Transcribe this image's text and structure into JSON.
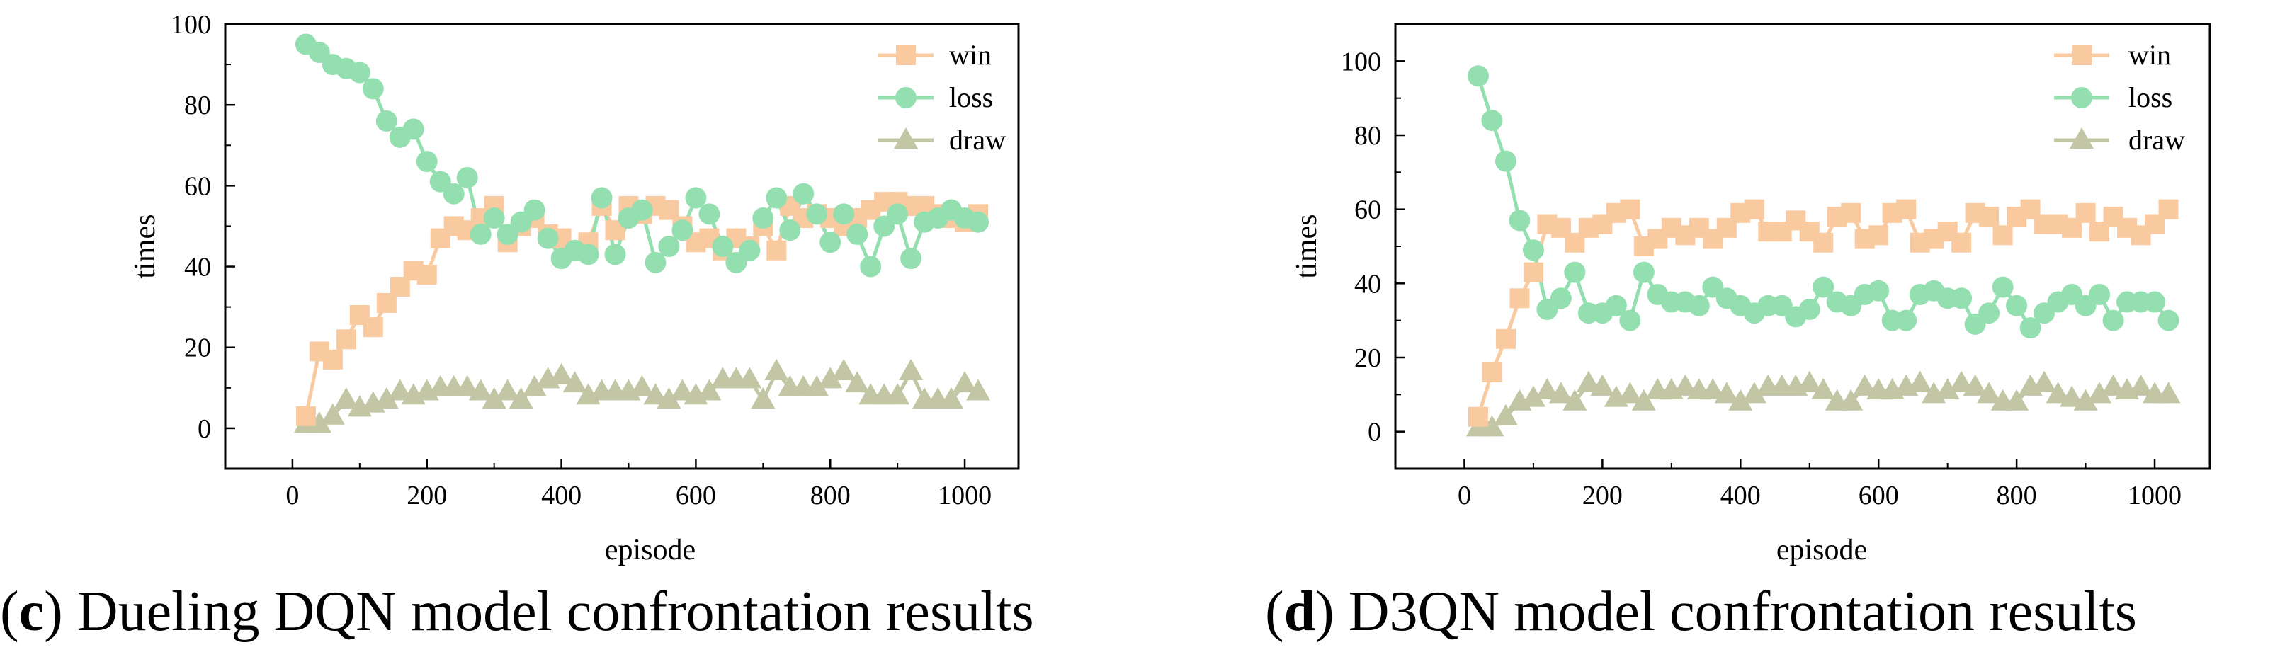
{
  "panels": [
    {
      "caption": {
        "open": "(",
        "letter": "c",
        "close": ")",
        "text": "Dueling DQN model confrontation results"
      },
      "chart_data": {
        "type": "line",
        "xlabel": "episode",
        "ylabel": "times",
        "xlim": [
          -100,
          1080
        ],
        "ylim": [
          -10,
          100
        ],
        "xticks": [
          0,
          200,
          400,
          600,
          800,
          1000
        ],
        "yticks": [
          0,
          20,
          40,
          60,
          80,
          100
        ],
        "legend": "top-right",
        "x": [
          20,
          40,
          60,
          80,
          100,
          120,
          140,
          160,
          180,
          200,
          220,
          240,
          260,
          280,
          300,
          320,
          340,
          360,
          380,
          400,
          420,
          440,
          460,
          480,
          500,
          520,
          540,
          560,
          580,
          600,
          620,
          640,
          660,
          680,
          700,
          720,
          740,
          760,
          780,
          800,
          820,
          840,
          860,
          880,
          900,
          920,
          940,
          960,
          980,
          1000,
          1020
        ],
        "series": [
          {
            "name": "win",
            "marker": "square",
            "color": "#f9c9a0",
            "values": [
              3,
              19,
              17,
              22,
              28,
              25,
              31,
              35,
              39,
              38,
              47,
              50,
              49,
              52,
              55,
              46,
              50,
              52,
              48,
              47,
              44,
              46,
              55,
              49,
              55,
              53,
              55,
              54,
              50,
              46,
              47,
              44,
              47,
              45,
              50,
              44,
              55,
              52,
              53,
              52,
              50,
              52,
              54,
              56,
              56,
              55,
              55,
              53,
              52,
              51,
              53
            ]
          },
          {
            "name": "loss",
            "marker": "circle",
            "color": "#94dfb0",
            "values": [
              95,
              93,
              90,
              89,
              88,
              84,
              76,
              72,
              74,
              66,
              61,
              58,
              62,
              48,
              52,
              48,
              51,
              54,
              47,
              42,
              44,
              43,
              57,
              43,
              52,
              54,
              41,
              45,
              49,
              57,
              53,
              45,
              41,
              44,
              52,
              57,
              49,
              58,
              53,
              46,
              53,
              48,
              40,
              50,
              53,
              42,
              51,
              52,
              54,
              52,
              51
            ]
          },
          {
            "name": "draw",
            "marker": "triangle",
            "color": "#c2c6a4",
            "values": [
              1,
              1,
              3,
              7,
              5,
              6,
              7,
              9,
              8,
              9,
              10,
              10,
              10,
              9,
              7,
              9,
              7,
              10,
              12,
              13,
              11,
              8,
              9,
              9,
              9,
              10,
              8,
              7,
              9,
              8,
              9,
              12,
              12,
              12,
              7,
              14,
              10,
              10,
              10,
              12,
              14,
              11,
              8,
              8,
              8,
              14,
              7,
              7,
              7,
              11,
              9
            ]
          }
        ]
      }
    },
    {
      "caption": {
        "open": "(",
        "letter": "d",
        "close": ")",
        "text": "D3QN model confrontation results"
      },
      "chart_data": {
        "type": "line",
        "xlabel": "episode",
        "ylabel": "times",
        "xlim": [
          -100,
          1080
        ],
        "ylim": [
          -10,
          110
        ],
        "xticks": [
          0,
          200,
          400,
          600,
          800,
          1000
        ],
        "yticks": [
          0,
          20,
          40,
          60,
          80,
          100
        ],
        "legend": "top-right",
        "x": [
          20,
          40,
          60,
          80,
          100,
          120,
          140,
          160,
          180,
          200,
          220,
          240,
          260,
          280,
          300,
          320,
          340,
          360,
          380,
          400,
          420,
          440,
          460,
          480,
          500,
          520,
          540,
          560,
          580,
          600,
          620,
          640,
          660,
          680,
          700,
          720,
          740,
          760,
          780,
          800,
          820,
          840,
          860,
          880,
          900,
          920,
          940,
          960,
          980,
          1000,
          1020
        ],
        "series": [
          {
            "name": "win",
            "marker": "square",
            "color": "#f9c9a0",
            "values": [
              4,
              16,
              25,
              36,
              43,
              56,
              55,
              51,
              55,
              56,
              59,
              60,
              50,
              52,
              55,
              53,
              55,
              52,
              55,
              59,
              60,
              54,
              54,
              57,
              54,
              51,
              58,
              59,
              52,
              53,
              59,
              60,
              51,
              52,
              54,
              51,
              59,
              58,
              53,
              58,
              60,
              56,
              56,
              55,
              59,
              54,
              58,
              55,
              53,
              56,
              60
            ]
          },
          {
            "name": "loss",
            "marker": "circle",
            "color": "#94dfb0",
            "values": [
              96,
              84,
              73,
              57,
              49,
              33,
              36,
              43,
              32,
              32,
              34,
              30,
              43,
              37,
              35,
              35,
              34,
              39,
              36,
              34,
              32,
              34,
              34,
              31,
              33,
              39,
              35,
              34,
              37,
              38,
              30,
              30,
              37,
              38,
              36,
              36,
              29,
              32,
              39,
              34,
              28,
              32,
              35,
              37,
              34,
              37,
              30,
              35,
              35,
              35,
              30
            ]
          },
          {
            "name": "draw",
            "marker": "triangle",
            "color": "#c2c6a4",
            "values": [
              1,
              1,
              4,
              8,
              9,
              11,
              10,
              8,
              13,
              12,
              9,
              10,
              8,
              11,
              11,
              12,
              11,
              11,
              10,
              8,
              10,
              12,
              12,
              12,
              13,
              11,
              8,
              8,
              12,
              11,
              11,
              12,
              13,
              10,
              11,
              13,
              12,
              10,
              8,
              8,
              12,
              13,
              10,
              9,
              8,
              10,
              12,
              11,
              12,
              10,
              10
            ]
          }
        ]
      }
    }
  ]
}
